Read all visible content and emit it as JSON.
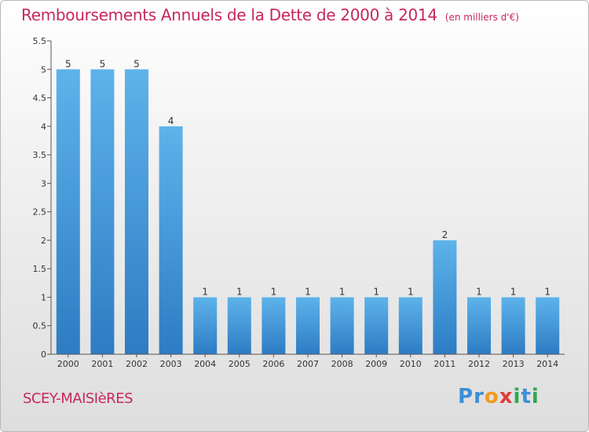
{
  "title": "Remboursements Annuels de la Dette de 2000 à 2014",
  "subtitle": "(en milliers d'€)",
  "commune": "SCEY-MAISIèRES",
  "brand": {
    "name": "Proxiti",
    "letters": [
      "P",
      "r",
      "o",
      "x",
      "i",
      "t",
      "i"
    ],
    "colors": [
      "#3b8fd6",
      "#3b8fd6",
      "#f29a1c",
      "#e03b3b",
      "#2fa84f",
      "#3b8fd6",
      "#2fa84f"
    ]
  },
  "colors": {
    "bar_top": "#5eb3ea",
    "bar_bottom": "#2d7cc4",
    "title": "#c8285a",
    "axis": "#555555"
  },
  "chart_data": {
    "type": "bar",
    "title": "Remboursements Annuels de la Dette de 2000 à 2014",
    "subtitle": "(en milliers d'€)",
    "xlabel": "",
    "ylabel": "",
    "categories": [
      "2000",
      "2001",
      "2002",
      "2003",
      "2004",
      "2005",
      "2006",
      "2007",
      "2008",
      "2009",
      "2010",
      "2011",
      "2012",
      "2013",
      "2014"
    ],
    "values": [
      5,
      5,
      5,
      4,
      1,
      1,
      1,
      1,
      1,
      1,
      1,
      2,
      1,
      1,
      1
    ],
    "data_labels": [
      "5",
      "5",
      "5",
      "4",
      "1",
      "1",
      "1",
      "1",
      "1",
      "1",
      "1",
      "2",
      "1",
      "1",
      "1"
    ],
    "ylim": [
      0,
      5.5
    ],
    "yticks": [
      0,
      0.5,
      1,
      1.5,
      2,
      2.5,
      3,
      3.5,
      4,
      4.5,
      5,
      5.5
    ],
    "ytick_labels": [
      "0",
      "0.5",
      "1",
      "1.5",
      "2",
      "2.5",
      "3",
      "3.5",
      "4",
      "4.5",
      "5",
      "5.5"
    ],
    "grid": false,
    "legend": "none"
  }
}
